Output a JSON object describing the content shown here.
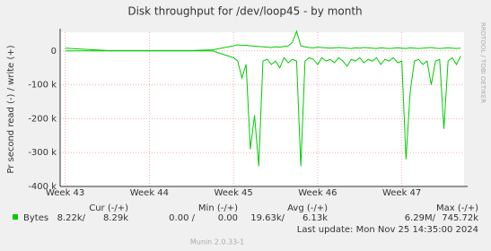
{
  "chart_data": {
    "type": "line",
    "title": "Disk throughput for /dev/loop45 - by month",
    "y_label": "Pr second read (-) / write (+)",
    "side_label": "RRDTOOL / TOBI OETIKER",
    "x": [
      43.0,
      43.5,
      44.0,
      44.5,
      44.75,
      45.0,
      45.05,
      45.1,
      45.15,
      45.2,
      45.25,
      45.3,
      45.35,
      45.4,
      45.45,
      45.5,
      45.55,
      45.6,
      45.65,
      45.7,
      45.75,
      45.8,
      45.85,
      45.9,
      45.95,
      46.0,
      46.05,
      46.1,
      46.15,
      46.2,
      46.25,
      46.3,
      46.35,
      46.4,
      46.45,
      46.5,
      46.55,
      46.6,
      46.65,
      46.7,
      46.75,
      46.8,
      46.85,
      46.9,
      46.95,
      47.0,
      47.05,
      47.1,
      47.15,
      47.2,
      47.25,
      47.3,
      47.35,
      47.4,
      47.45,
      47.5,
      47.55,
      47.6,
      47.65,
      47.7
    ],
    "series": [
      {
        "color": "#00cc00",
        "values": [
          0,
          0,
          0,
          0,
          0,
          -20000,
          -30000,
          -80000,
          -40000,
          -290000,
          -190000,
          -340000,
          -30000,
          -25000,
          -40000,
          -30000,
          -50000,
          -20000,
          -35000,
          -25000,
          -30000,
          -340000,
          -30000,
          -20000,
          -25000,
          -40000,
          -20000,
          -30000,
          -25000,
          -35000,
          -20000,
          -30000,
          -45000,
          -25000,
          -30000,
          -20000,
          -35000,
          -25000,
          -30000,
          -20000,
          -40000,
          -25000,
          -30000,
          -20000,
          -35000,
          -30000,
          -320000,
          -120000,
          -30000,
          -25000,
          -40000,
          -30000,
          -100000,
          -30000,
          -25000,
          -230000,
          -30000,
          -20000,
          -40000,
          -15000
        ]
      },
      {
        "color": "#00cc00",
        "values": [
          8000,
          1000,
          1000,
          1000,
          3000,
          15000,
          18000,
          16000,
          17000,
          15000,
          14000,
          13000,
          12000,
          11000,
          10000,
          12000,
          11000,
          13000,
          15000,
          25000,
          58000,
          15000,
          12000,
          10000,
          9000,
          11000,
          10000,
          9000,
          8000,
          9000,
          10000,
          9000,
          8000,
          7000,
          9000,
          8000,
          10000,
          9000,
          8000,
          7000,
          9000,
          8000,
          7000,
          8000,
          9000,
          8000,
          7000,
          9000,
          8000,
          7000,
          8000,
          9000,
          10000,
          8000,
          7000,
          8000,
          9000,
          8000,
          7000,
          8000
        ]
      }
    ],
    "xlim": [
      42.94,
      47.74
    ],
    "xticks": [
      {
        "value": 43,
        "label": "Week 43"
      },
      {
        "value": 44,
        "label": "Week 44"
      },
      {
        "value": 45,
        "label": "Week 45"
      },
      {
        "value": 46,
        "label": "Week 46"
      },
      {
        "value": 47,
        "label": "Week 47"
      }
    ],
    "ylim": [
      -400000,
      55000
    ],
    "yticks": [
      {
        "value": 0,
        "label": "0"
      },
      {
        "value": -100000,
        "label": "-100 k"
      },
      {
        "value": -200000,
        "label": "-200 k"
      },
      {
        "value": -300000,
        "label": "-300 k"
      },
      {
        "value": -400000,
        "label": "-400 k"
      }
    ],
    "grid": true,
    "legend_table": {
      "headers": [
        "Cur (-/+)",
        "Min (-/+)",
        "Avg (-/+)",
        "Max (-/+)"
      ],
      "row": {
        "name": "Bytes",
        "color": "#00cc00",
        "cells": [
          [
            "8.22k/",
            "8.29k"
          ],
          [
            "0.00 /",
            "0.00"
          ],
          [
            "19.63k/",
            "6.13k"
          ],
          [
            "6.29M/",
            "745.72k"
          ]
        ]
      }
    },
    "last_update": "Last update: Mon Nov 25 14:35:00 2024",
    "footer": "Munin 2.0.33-1"
  }
}
